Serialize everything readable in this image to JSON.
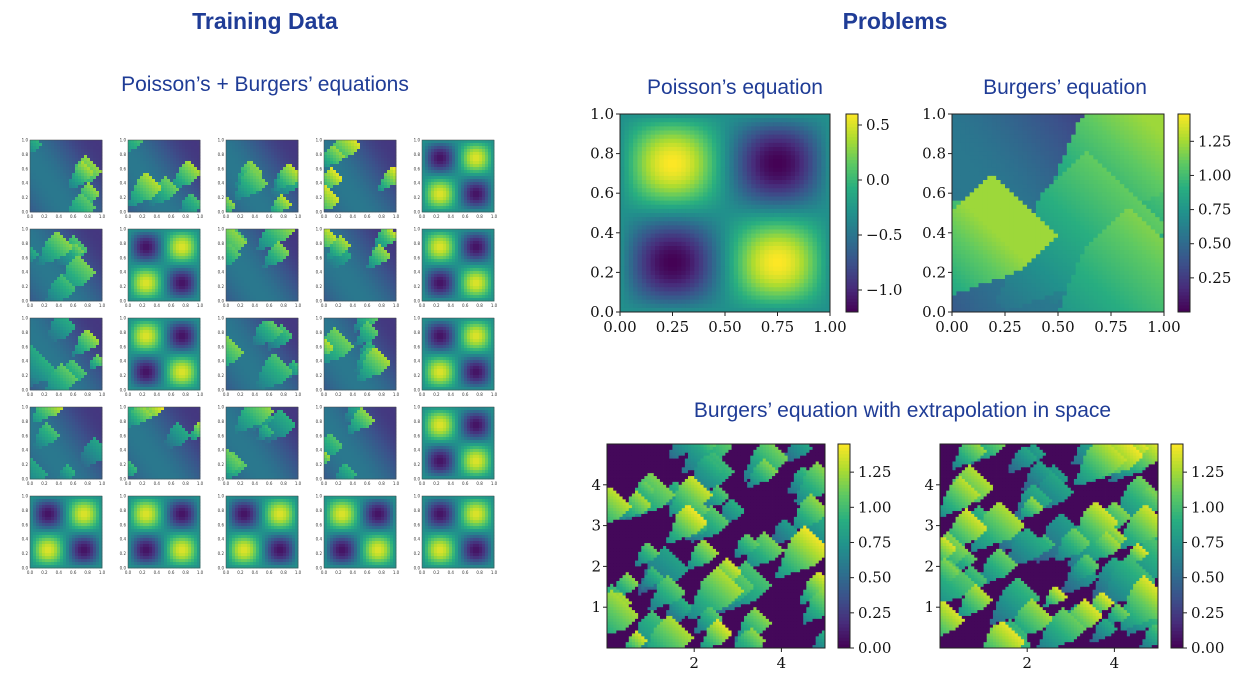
{
  "headings": {
    "training": "Training Data",
    "problems": "Problems"
  },
  "subheadings": {
    "training": "Poisson’s + Burgers’ equations",
    "poisson": "Poisson’s equation",
    "burgers": "Burgers’ equation",
    "extrap": "Burgers’ equation with extrapolation in space"
  },
  "colors": {
    "heading": "#1f3c96",
    "viridis": [
      "#440154",
      "#472d7b",
      "#3b528b",
      "#2c728e",
      "#21918c",
      "#28ae80",
      "#5ec962",
      "#addc30",
      "#fde725"
    ]
  },
  "chart_data": [
    {
      "id": "training-grid",
      "type": "heatmap",
      "title": "Poisson’s + Burgers’ equations",
      "rows": 5,
      "cols": 5,
      "xlim": [
        0,
        1
      ],
      "ylim": [
        0,
        1
      ],
      "xticks": [
        "0.0",
        "0.2",
        "0.4",
        "0.6",
        "0.8",
        "1.0"
      ],
      "yticks": [
        "0.0",
        "0.2",
        "0.4",
        "0.6",
        "0.8",
        "1.0"
      ],
      "cells": [
        [
          "burgers",
          "burgers",
          "burgers",
          "burgers",
          "poisson"
        ],
        [
          "burgers",
          "poisson",
          "burgers",
          "burgers",
          "poisson"
        ],
        [
          "burgers",
          "poisson",
          "burgers",
          "burgers",
          "poisson"
        ],
        [
          "burgers",
          "burgers",
          "burgers",
          "burgers",
          "poisson"
        ],
        [
          "poisson",
          "poisson",
          "poisson",
          "poisson",
          "poisson"
        ]
      ]
    },
    {
      "id": "poisson",
      "type": "heatmap",
      "title": "Poisson’s equation",
      "xlim": [
        0,
        1
      ],
      "ylim": [
        0,
        1
      ],
      "xticks": [
        "0.00",
        "0.25",
        "0.50",
        "0.75",
        "1.00"
      ],
      "yticks": [
        "0.0",
        "0.2",
        "0.4",
        "0.6",
        "0.8",
        "1.0"
      ],
      "colorbar": {
        "min": -1.2,
        "max": 0.6,
        "ticks": [
          "0.5",
          "0.0",
          "−0.5",
          "−1.0"
        ],
        "tick_values": [
          0.5,
          0.0,
          -0.5,
          -1.0
        ]
      }
    },
    {
      "id": "burgers",
      "type": "heatmap",
      "title": "Burgers’ equation",
      "xlim": [
        0,
        1
      ],
      "ylim": [
        0,
        1
      ],
      "xticks": [
        "0.00",
        "0.25",
        "0.50",
        "0.75",
        "1.00"
      ],
      "yticks": [
        "0.0",
        "0.2",
        "0.4",
        "0.6",
        "0.8",
        "1.0"
      ],
      "colorbar": {
        "min": 0.0,
        "max": 1.45,
        "ticks": [
          "1.25",
          "1.00",
          "0.75",
          "0.50",
          "0.25"
        ],
        "tick_values": [
          1.25,
          1.0,
          0.75,
          0.5,
          0.25
        ]
      }
    },
    {
      "id": "extrap-left",
      "type": "heatmap",
      "title": "Burgers’ equation with extrapolation in space",
      "xlim": [
        0,
        5
      ],
      "ylim": [
        0,
        5
      ],
      "xticks": [
        "2",
        "4"
      ],
      "xtick_values": [
        2,
        4
      ],
      "yticks": [
        "1",
        "2",
        "3",
        "4"
      ],
      "ytick_values": [
        1,
        2,
        3,
        4
      ],
      "colorbar": {
        "min": 0.0,
        "max": 1.45,
        "ticks": [
          "1.25",
          "1.00",
          "0.75",
          "0.50",
          "0.25",
          "0.00"
        ],
        "tick_values": [
          1.25,
          1.0,
          0.75,
          0.5,
          0.25,
          0.0
        ]
      }
    },
    {
      "id": "extrap-right",
      "type": "heatmap",
      "xlim": [
        0,
        5
      ],
      "ylim": [
        0,
        5
      ],
      "xticks": [
        "2",
        "4"
      ],
      "xtick_values": [
        2,
        4
      ],
      "yticks": [
        "1",
        "2",
        "3",
        "4"
      ],
      "ytick_values": [
        1,
        2,
        3,
        4
      ],
      "colorbar": {
        "min": 0.0,
        "max": 1.45,
        "ticks": [
          "1.25",
          "1.00",
          "0.75",
          "0.50",
          "0.25",
          "0.00"
        ],
        "tick_values": [
          1.25,
          1.0,
          0.75,
          0.5,
          0.25,
          0.0
        ]
      }
    }
  ]
}
